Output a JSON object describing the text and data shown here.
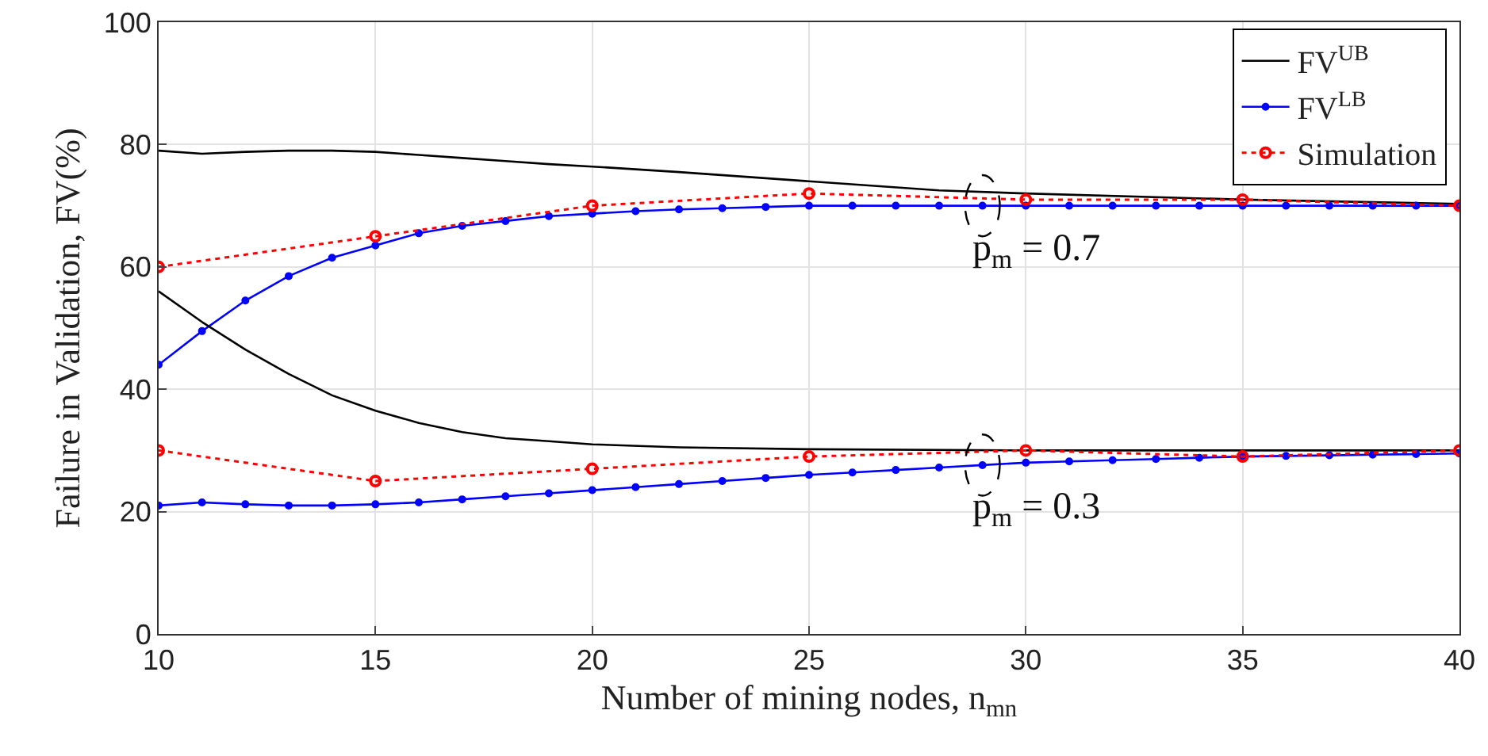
{
  "chart_data": {
    "type": "line",
    "xlabel": "Number of mining nodes, n$_{mn}$",
    "ylabel": "Failure in Validation, FV(%)",
    "xlim": [
      10,
      40
    ],
    "xticks": [
      10,
      15,
      20,
      25,
      30,
      35,
      40
    ],
    "ylim": [
      0,
      100
    ],
    "yticks": [
      0,
      20,
      40,
      60,
      80,
      100
    ],
    "grid": true,
    "legend": "top right",
    "series": [
      {
        "name": "FV$^{UB}$",
        "color": "#000000",
        "marker": "none",
        "line_style": "solid",
        "x": [
          10,
          11,
          12,
          13,
          14,
          15,
          16,
          17,
          18,
          19,
          20,
          22,
          25,
          28,
          30,
          35,
          40
        ],
        "values": [
          79,
          78.5,
          78.8,
          79,
          79,
          78.8,
          78.3,
          77.8,
          77.3,
          76.8,
          76.4,
          75.5,
          74,
          72.5,
          72,
          71,
          70.3
        ]
      },
      {
        "name": "FV$^{LB}$",
        "color": "#0000ff",
        "marker": "circle",
        "line_style": "solid",
        "x": [
          10,
          11,
          12,
          13,
          14,
          15,
          16,
          17,
          18,
          19,
          20,
          21,
          22,
          23,
          24,
          25,
          26,
          27,
          28,
          29,
          30,
          31,
          32,
          33,
          34,
          35,
          36,
          37,
          38,
          39,
          40
        ],
        "values": [
          44,
          49.5,
          54.5,
          58.5,
          61.5,
          63.5,
          65.5,
          66.7,
          67.5,
          68.3,
          68.7,
          69.1,
          69.4,
          69.6,
          69.8,
          70,
          70,
          70,
          70,
          70,
          70,
          70,
          70,
          70,
          70,
          70,
          70,
          70,
          70,
          70,
          70
        ]
      },
      {
        "name": "Simulation",
        "color": "#ff0000",
        "marker": "circle",
        "line_style": "dotted",
        "x": [
          10,
          15,
          20,
          25,
          30,
          35,
          40
        ],
        "values": [
          60,
          65,
          70,
          72,
          71,
          71,
          70
        ]
      },
      {
        "color": "#000000",
        "marker": "none",
        "line_style": "solid",
        "x": [
          10,
          11,
          12,
          13,
          14,
          15,
          16,
          17,
          18,
          19,
          20,
          22,
          25,
          30,
          40
        ],
        "values": [
          56,
          51,
          46.5,
          42.5,
          39,
          36.5,
          34.5,
          33,
          32,
          31.5,
          31,
          30.5,
          30.2,
          30,
          30
        ]
      },
      {
        "color": "#0000ff",
        "marker": "circle",
        "line_style": "solid",
        "x": [
          10,
          11,
          12,
          13,
          14,
          15,
          16,
          17,
          18,
          19,
          20,
          21,
          22,
          23,
          24,
          25,
          26,
          27,
          28,
          29,
          30,
          31,
          32,
          33,
          34,
          35,
          36,
          37,
          38,
          39,
          40
        ],
        "values": [
          21,
          21.5,
          21.2,
          21,
          21,
          21.2,
          21.5,
          22,
          22.5,
          23,
          23.5,
          24,
          24.5,
          25,
          25.5,
          26,
          26.4,
          26.8,
          27.2,
          27.6,
          28,
          28.2,
          28.4,
          28.6,
          28.8,
          29,
          29.1,
          29.2,
          29.3,
          29.4,
          29.5
        ]
      },
      {
        "color": "#ff0000",
        "marker": "circle",
        "line_style": "dotted",
        "x": [
          10,
          15,
          20,
          25,
          30,
          35,
          40
        ],
        "values": [
          30,
          25,
          27,
          29,
          30,
          29,
          30
        ]
      }
    ],
    "annotations": [
      {
        "text": "p$_{m}$ = 0.7",
        "x": 29,
        "y": 70
      },
      {
        "text": "p$_{m}$ = 0.3",
        "x": 29,
        "y": 27.6
      }
    ]
  }
}
